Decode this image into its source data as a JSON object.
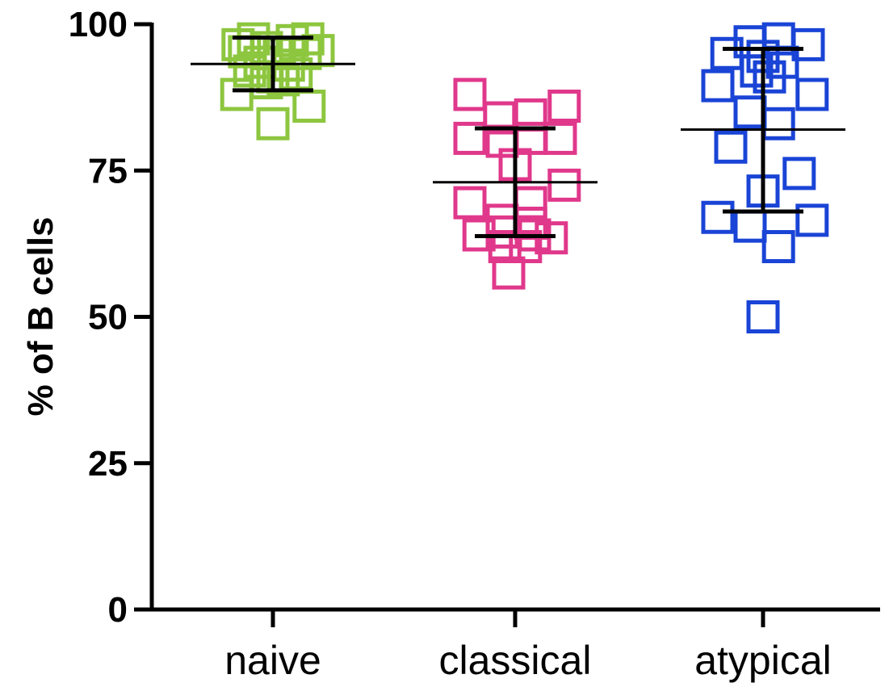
{
  "chart_data": {
    "type": "scatter",
    "title": "",
    "xlabel": "",
    "ylabel": "% of B cells",
    "ylim": [
      0,
      100
    ],
    "yticks": [
      0,
      25,
      50,
      75,
      100
    ],
    "grid": false,
    "legend": "none",
    "categories": [
      "naive",
      "classical",
      "atypical"
    ],
    "marker": "open-square",
    "series": [
      {
        "category": "naive",
        "color": "#8dc63f",
        "mean": 93.2,
        "error_low": 88.7,
        "error_high": 97.7,
        "points": [
          {
            "offset": -0.27,
            "value": 96.5
          },
          {
            "offset": -0.15,
            "value": 97.5
          },
          {
            "offset": -0.22,
            "value": 95.3
          },
          {
            "offset": -0.05,
            "value": 96.0
          },
          {
            "offset": 0.05,
            "value": 95.0
          },
          {
            "offset": 0.15,
            "value": 97.2
          },
          {
            "offset": 0.27,
            "value": 97.5
          },
          {
            "offset": 0.35,
            "value": 95.5
          },
          {
            "offset": 0.25,
            "value": 95.0
          },
          {
            "offset": -0.1,
            "value": 93.5
          },
          {
            "offset": 0.12,
            "value": 93.0
          },
          {
            "offset": -0.18,
            "value": 92.0
          },
          {
            "offset": 0.0,
            "value": 91.0
          },
          {
            "offset": 0.08,
            "value": 90.5
          },
          {
            "offset": -0.05,
            "value": 90.0
          },
          {
            "offset": 0.18,
            "value": 91.5
          },
          {
            "offset": -0.28,
            "value": 88.0
          },
          {
            "offset": 0.28,
            "value": 86.0
          },
          {
            "offset": 0.0,
            "value": 83.0
          }
        ]
      },
      {
        "category": "classical",
        "color": "#e0388b",
        "mean": 73.0,
        "error_low": 63.8,
        "error_high": 82.2,
        "points": [
          {
            "offset": -0.35,
            "value": 88.0
          },
          {
            "offset": -0.12,
            "value": 84.0
          },
          {
            "offset": 0.12,
            "value": 84.5
          },
          {
            "offset": 0.38,
            "value": 86.0
          },
          {
            "offset": -0.35,
            "value": 80.5
          },
          {
            "offset": -0.1,
            "value": 80.0
          },
          {
            "offset": 0.12,
            "value": 80.5
          },
          {
            "offset": 0.35,
            "value": 80.5
          },
          {
            "offset": 0.0,
            "value": 76.0
          },
          {
            "offset": 0.38,
            "value": 72.5
          },
          {
            "offset": -0.35,
            "value": 69.5
          },
          {
            "offset": 0.12,
            "value": 69.5
          },
          {
            "offset": -0.1,
            "value": 66.5
          },
          {
            "offset": 0.12,
            "value": 66.0
          },
          {
            "offset": -0.28,
            "value": 64.0
          },
          {
            "offset": -0.1,
            "value": 64.5
          },
          {
            "offset": 0.15,
            "value": 64.0
          },
          {
            "offset": 0.28,
            "value": 63.5
          },
          {
            "offset": -0.08,
            "value": 62.0
          },
          {
            "offset": 0.08,
            "value": 62.0
          },
          {
            "offset": -0.05,
            "value": 57.5
          }
        ]
      },
      {
        "category": "atypical",
        "color": "#1a44d6",
        "mean": 82.0,
        "error_low": 68.0,
        "error_high": 95.8,
        "points": [
          {
            "offset": -0.1,
            "value": 97.0
          },
          {
            "offset": 0.12,
            "value": 97.5
          },
          {
            "offset": 0.35,
            "value": 96.5
          },
          {
            "offset": -0.28,
            "value": 95.0
          },
          {
            "offset": 0.0,
            "value": 94.5
          },
          {
            "offset": 0.15,
            "value": 93.5
          },
          {
            "offset": -0.05,
            "value": 92.0
          },
          {
            "offset": 0.05,
            "value": 91.0
          },
          {
            "offset": -0.35,
            "value": 89.5
          },
          {
            "offset": 0.38,
            "value": 88.0
          },
          {
            "offset": -0.1,
            "value": 85.0
          },
          {
            "offset": 0.12,
            "value": 83.0
          },
          {
            "offset": -0.25,
            "value": 79.0
          },
          {
            "offset": 0.28,
            "value": 74.5
          },
          {
            "offset": 0.0,
            "value": 71.5
          },
          {
            "offset": -0.35,
            "value": 67.0
          },
          {
            "offset": 0.38,
            "value": 66.5
          },
          {
            "offset": -0.1,
            "value": 65.5
          },
          {
            "offset": 0.12,
            "value": 62.0
          },
          {
            "offset": 0.0,
            "value": 50.0
          }
        ]
      }
    ]
  }
}
